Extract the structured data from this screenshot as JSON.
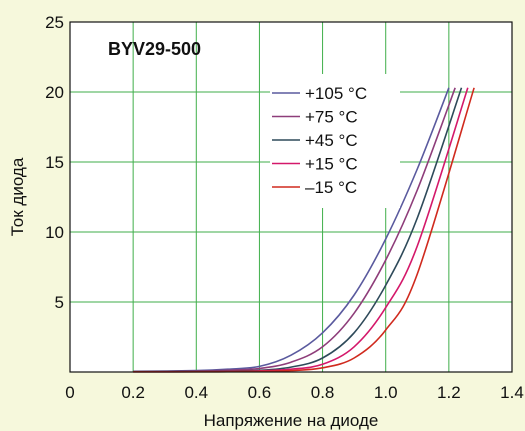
{
  "chart_data": {
    "type": "line",
    "title": "",
    "annotation": "BYV29-500",
    "xlabel": "Напряжение на диоде",
    "ylabel": "Ток диода",
    "xlim": [
      0,
      1.4
    ],
    "ylim": [
      0,
      25
    ],
    "x_ticks": [
      "0",
      "0.2",
      "0.4",
      "0.6",
      "0.8",
      "1.0",
      "1.2",
      "1.4"
    ],
    "y_ticks": [
      "5",
      "10",
      "15",
      "20",
      "25"
    ],
    "grid": true,
    "legend_position": "top-right",
    "series": [
      {
        "name": "+105 °C",
        "color": "#5a5a9e",
        "x": [
          0.2,
          0.4,
          0.5,
          0.6,
          0.7,
          0.8,
          0.9,
          1.0,
          1.1,
          1.2
        ],
        "y": [
          0.05,
          0.1,
          0.2,
          0.4,
          1.2,
          2.8,
          5.5,
          9.5,
          14.5,
          20.3
        ]
      },
      {
        "name": "+75 °C",
        "color": "#8e3d7a",
        "x": [
          0.2,
          0.4,
          0.5,
          0.6,
          0.7,
          0.8,
          0.9,
          1.0,
          1.1,
          1.22
        ],
        "y": [
          0.03,
          0.07,
          0.12,
          0.25,
          0.7,
          1.8,
          4.2,
          8.0,
          13.0,
          20.3
        ]
      },
      {
        "name": "+45 °C",
        "color": "#2e4a5a",
        "x": [
          0.2,
          0.4,
          0.5,
          0.6,
          0.7,
          0.8,
          0.9,
          1.0,
          1.1,
          1.24
        ],
        "y": [
          0.02,
          0.04,
          0.07,
          0.12,
          0.35,
          1.0,
          2.8,
          6.2,
          11.0,
          20.3
        ]
      },
      {
        "name": "+15 °C",
        "color": "#d4186a",
        "x": [
          0.2,
          0.4,
          0.5,
          0.6,
          0.7,
          0.8,
          0.9,
          1.0,
          1.1,
          1.26
        ],
        "y": [
          0.01,
          0.02,
          0.04,
          0.08,
          0.2,
          0.55,
          1.8,
          4.6,
          9.0,
          20.3
        ]
      },
      {
        "name": "–15 °C",
        "color": "#d02a1e",
        "x": [
          0.2,
          0.4,
          0.5,
          0.6,
          0.7,
          0.8,
          0.9,
          1.0,
          1.1,
          1.28
        ],
        "y": [
          0.01,
          0.01,
          0.02,
          0.04,
          0.1,
          0.3,
          1.0,
          3.0,
          7.0,
          20.3
        ]
      }
    ]
  }
}
